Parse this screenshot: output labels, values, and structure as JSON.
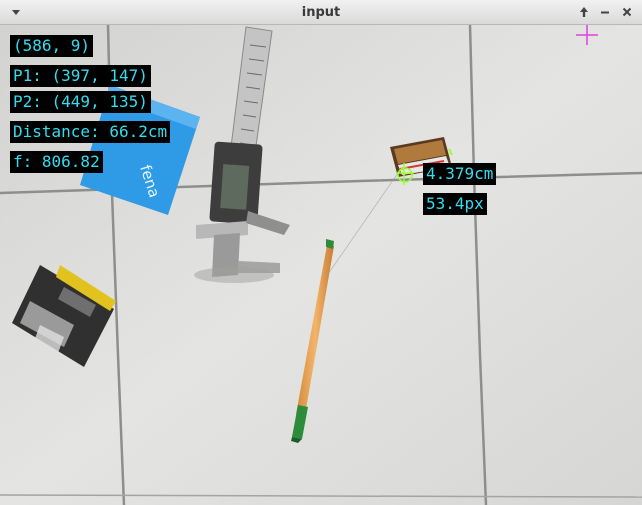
{
  "window": {
    "title": "input"
  },
  "overlay": {
    "cursor_coords": "(586, 9)",
    "p1": "P1: (397, 147)",
    "p2": "P2: (449, 135)",
    "distance": "Distance: 66.2cm",
    "focal": "f: 806.82",
    "size_cm": "4.379cm",
    "size_px": "53.4px"
  },
  "scene_text": {
    "booklet_brand": "fena"
  },
  "colors": {
    "overlay_text": "#33ddf0",
    "overlay_bg": "#000000",
    "crosshair_magenta": "#e040e0",
    "marker_green": "#99ff33"
  },
  "icons": {
    "window_menu": "chevron-down-icon",
    "keep_above": "arrow-up-icon",
    "minimize": "minus-icon",
    "close": "close-icon"
  }
}
